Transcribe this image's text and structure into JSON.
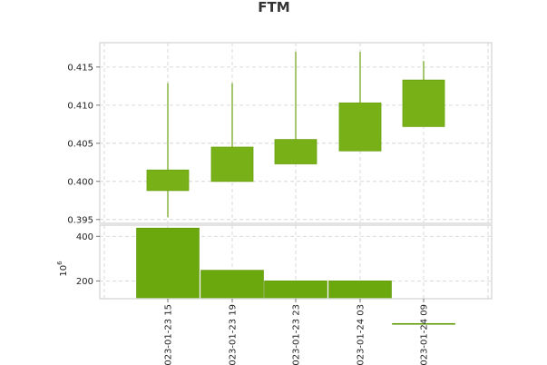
{
  "chart_data": {
    "type": "candlestick",
    "title": "FTM",
    "x_tick_labels": [
      "023-01-23 15",
      "023-01-23 19",
      "023-01-23 23",
      "023-01-24 03",
      "023-01-24 09"
    ],
    "price_panel": {
      "ylim": [
        0.3945,
        0.4182
      ],
      "yticks": [
        0.395,
        0.4,
        0.405,
        0.41,
        0.415
      ],
      "ytick_labels": [
        "0.395",
        "0.400",
        "0.405",
        "0.410",
        "0.415"
      ],
      "candles": [
        {
          "open": 0.3988,
          "high": 0.4129,
          "low": 0.3953,
          "close": 0.4015
        },
        {
          "open": 0.4,
          "high": 0.4129,
          "low": 0.4,
          "close": 0.4045
        },
        {
          "open": 0.4023,
          "high": 0.417,
          "low": 0.4023,
          "close": 0.4055
        },
        {
          "open": 0.404,
          "high": 0.417,
          "low": 0.404,
          "close": 0.4103
        },
        {
          "open": 0.4072,
          "high": 0.4158,
          "low": 0.4072,
          "close": 0.4133
        }
      ]
    },
    "volume_panel": {
      "ylabel_exponent": "10",
      "ylabel_power": "6",
      "ylim": [
        120,
        450
      ],
      "yticks": [
        200,
        400
      ],
      "ytick_labels": [
        "200",
        "400"
      ],
      "values": [
        437,
        248,
        200,
        200,
        9
      ]
    },
    "colors": {
      "candle_fill": "#78b017",
      "candle_edge": "#6aa211",
      "volume_fill": "#6aa80d",
      "volume_edge": "#5b9400"
    },
    "grid": true
  }
}
